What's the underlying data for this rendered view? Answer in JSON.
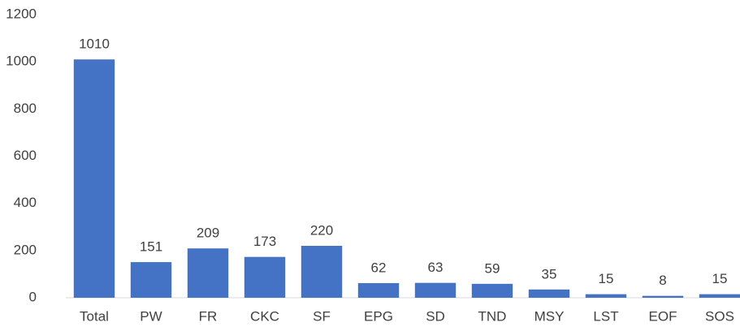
{
  "chart_data": {
    "type": "bar",
    "categories": [
      "Total",
      "PW",
      "FR",
      "CKC",
      "SF",
      "EPG",
      "SD",
      "TND",
      "MSY",
      "LST",
      "EOF",
      "SOS"
    ],
    "values": [
      1010,
      151,
      209,
      173,
      220,
      62,
      63,
      59,
      35,
      15,
      8,
      15
    ],
    "color": "#4472c4",
    "ylim": [
      0,
      1200
    ],
    "yticks": [
      0,
      200,
      400,
      600,
      800,
      1000,
      1200
    ],
    "grid": false,
    "data_labels": true
  }
}
